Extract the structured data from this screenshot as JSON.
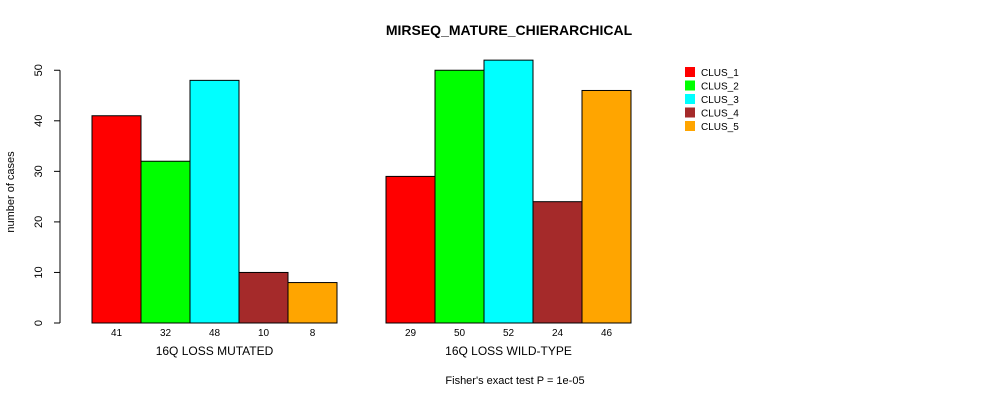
{
  "chart_data": {
    "type": "bar",
    "title": "MIRSEQ_MATURE_CHIERARCHICAL",
    "ylabel": "number of cases",
    "ylim": [
      0,
      52
    ],
    "yticks": [
      "0",
      "10",
      "20",
      "30",
      "40",
      "50"
    ],
    "groups": [
      {
        "name": "16Q LOSS MUTATED",
        "values": [
          41,
          32,
          48,
          10,
          8
        ],
        "value_labels": [
          "41",
          "32",
          "48",
          "10",
          "8"
        ]
      },
      {
        "name": "16Q LOSS WILD-TYPE",
        "values": [
          29,
          50,
          52,
          24,
          46
        ],
        "value_labels": [
          "29",
          "50",
          "52",
          "24",
          "46"
        ]
      }
    ],
    "series": [
      {
        "name": "CLUS_1",
        "color": "#ff0000"
      },
      {
        "name": "CLUS_2",
        "color": "#00ff00"
      },
      {
        "name": "CLUS_3",
        "color": "#00ffff"
      },
      {
        "name": "CLUS_4",
        "color": "#a52a2a"
      },
      {
        "name": "CLUS_5",
        "color": "#ffa500"
      }
    ],
    "legend_position": "top-right",
    "grid": false,
    "footnote": "Fisher's exact test P = 1e-05"
  }
}
